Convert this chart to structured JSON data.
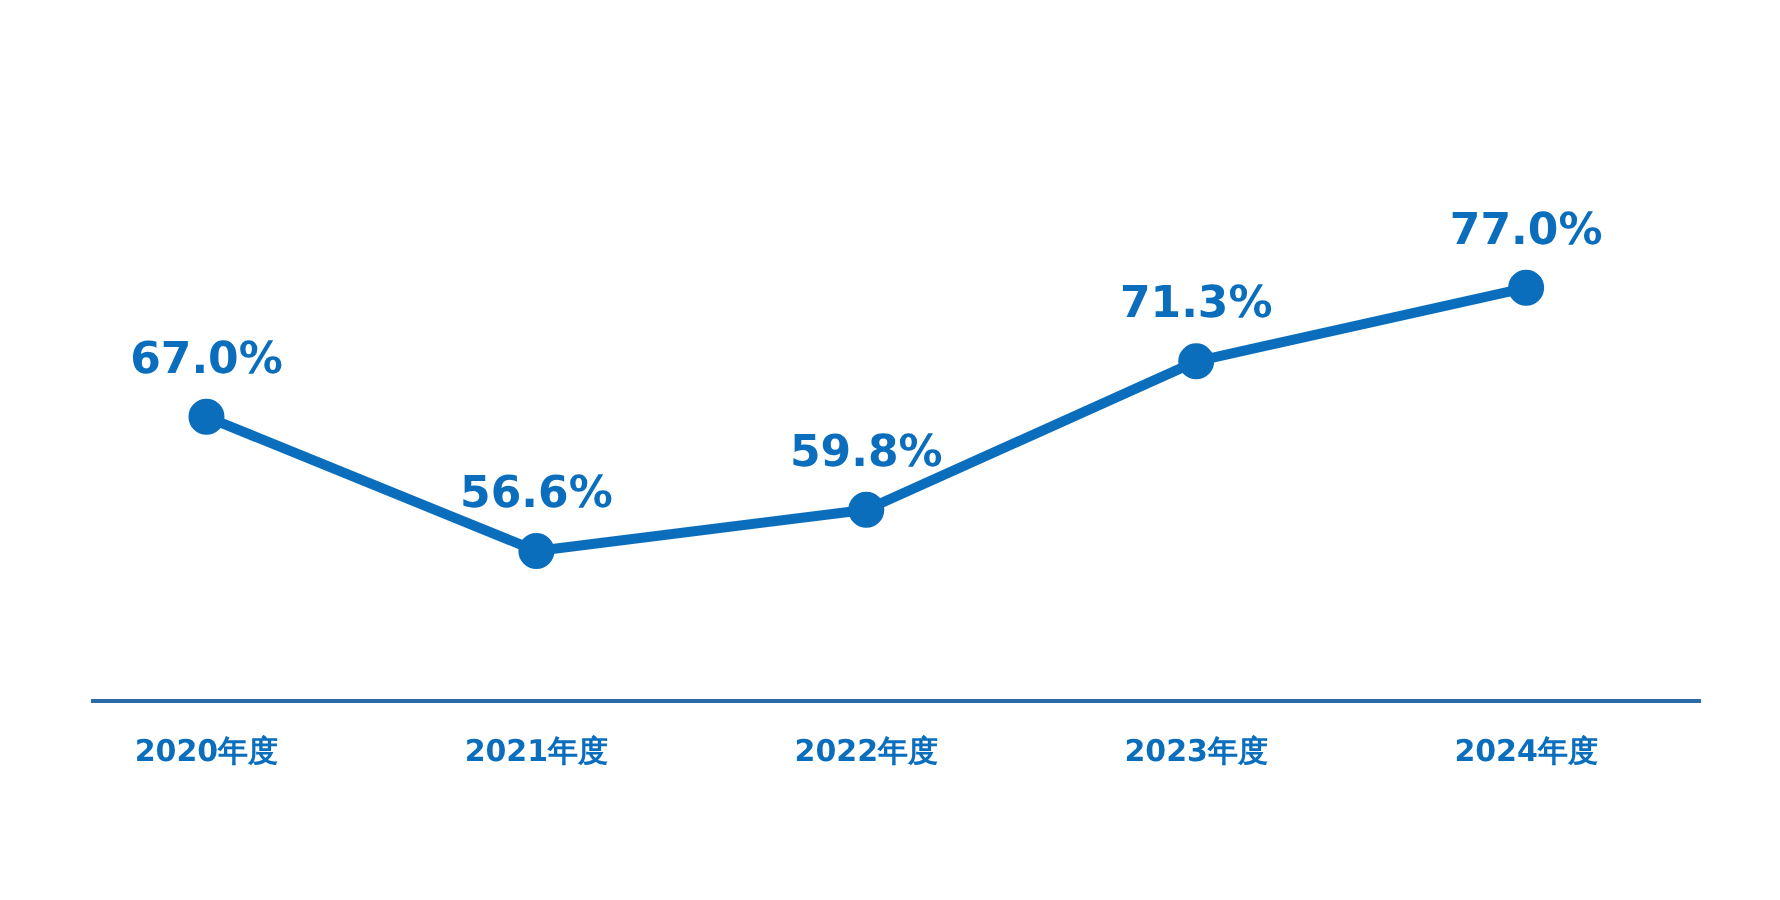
{
  "chart_data": {
    "type": "line",
    "categories": [
      "2020年度",
      "2021年度",
      "2022年度",
      "2023年度",
      "2024年度"
    ],
    "series": [
      {
        "color": "#0a6ebd",
        "values": [
          67.0,
          56.6,
          59.8,
          71.3,
          77.0
        ],
        "value_labels": [
          "67.0%",
          "56.6%",
          "59.8%",
          "71.3%",
          "77.0%"
        ]
      }
    ],
    "marker": "circle",
    "line_style": "solid",
    "grid": false
  }
}
